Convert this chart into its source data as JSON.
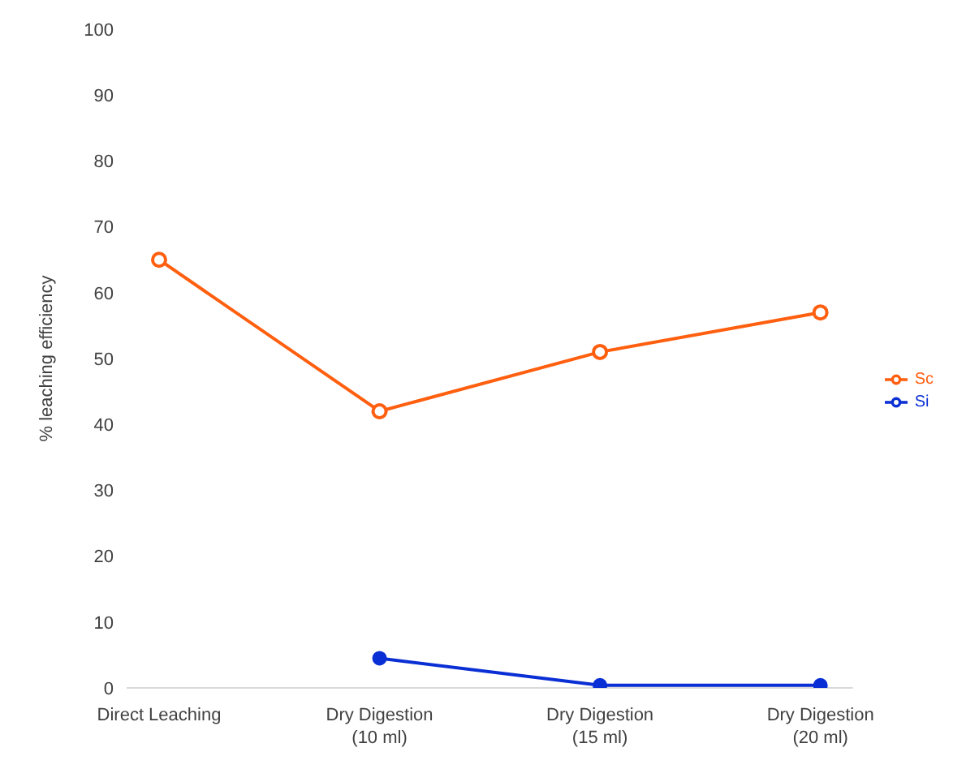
{
  "chart_data": {
    "type": "line",
    "ylabel": "% leaching efficiency",
    "categories": [
      "Direct Leaching",
      "Dry Digestion (10 ml)",
      "Dry Digestion (15 ml)",
      "Dry Digestion (20 ml)"
    ],
    "series": [
      {
        "name": "Sc",
        "color": "#ff5f0f",
        "values": [
          65,
          42,
          51,
          57
        ],
        "marker": "circle_open"
      },
      {
        "name": "Si",
        "color": "#0a2fd4",
        "values": [
          null,
          4.5,
          0.4,
          0.4
        ],
        "marker": "circle"
      }
    ],
    "ylim": [
      0,
      100
    ],
    "yticks": [
      0,
      10,
      20,
      30,
      40,
      50,
      60,
      70,
      80,
      90,
      100
    ],
    "grid": false,
    "legend": "right",
    "line_style": "solid"
  }
}
